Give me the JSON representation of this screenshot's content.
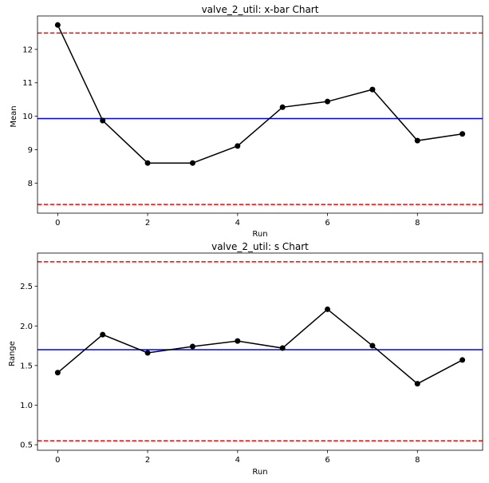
{
  "chart_data": [
    {
      "type": "line",
      "title": "valve_2_util: x-bar Chart",
      "xlabel": "Run",
      "ylabel": "Mean",
      "x": [
        0,
        1,
        2,
        3,
        4,
        5,
        6,
        7,
        8,
        9
      ],
      "series": [
        {
          "values": [
            12.73,
            9.87,
            8.6,
            8.6,
            9.11,
            10.27,
            10.44,
            10.8,
            9.27,
            9.47
          ],
          "color": "#000000"
        }
      ],
      "reference_lines": [
        {
          "value": 9.93,
          "color": "#0000ff",
          "style": "solid"
        },
        {
          "value": 12.49,
          "color": "#ff0000",
          "style": "dashed"
        },
        {
          "value": 7.36,
          "color": "#ff0000",
          "style": "dashed"
        }
      ],
      "xlim": [
        -0.45,
        9.45
      ],
      "ylim": [
        7.1,
        13.0
      ],
      "xticks": [
        0,
        2,
        4,
        6,
        8
      ],
      "yticks": [
        8,
        9,
        10,
        11,
        12
      ],
      "ytick_labels": [
        "8",
        "9",
        "10",
        "11",
        "12"
      ],
      "grid": false
    },
    {
      "type": "line",
      "title": "valve_2_util: s Chart",
      "xlabel": "Run",
      "ylabel": "Range",
      "x": [
        0,
        1,
        2,
        3,
        4,
        5,
        6,
        7,
        8,
        9
      ],
      "series": [
        {
          "values": [
            1.41,
            1.89,
            1.66,
            1.74,
            1.81,
            1.72,
            2.21,
            1.75,
            1.27,
            1.57
          ],
          "color": "#000000"
        }
      ],
      "reference_lines": [
        {
          "value": 1.7,
          "color": "#0000ff",
          "style": "solid"
        },
        {
          "value": 2.81,
          "color": "#ff0000",
          "style": "dashed"
        },
        {
          "value": 0.55,
          "color": "#ff0000",
          "style": "dashed"
        }
      ],
      "xlim": [
        -0.45,
        9.45
      ],
      "ylim": [
        0.43,
        2.92
      ],
      "xticks": [
        0,
        2,
        4,
        6,
        8
      ],
      "yticks": [
        0.5,
        1.0,
        1.5,
        2.0,
        2.5
      ],
      "ytick_labels": [
        "0.5",
        "1.0",
        "1.5",
        "2.0",
        "2.5"
      ],
      "grid": false
    }
  ]
}
